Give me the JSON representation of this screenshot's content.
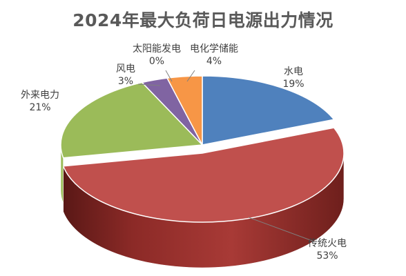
{
  "chart_data": {
    "type": "pie",
    "title": "2024年最大负荷日电源出力情况",
    "slices": [
      {
        "name": "水电",
        "value": 19,
        "label": "19%",
        "color": "#4F81BD"
      },
      {
        "name": "传统火电",
        "value": 53,
        "label": "53%",
        "color": "#C0504D"
      },
      {
        "name": "外来电力",
        "value": 21,
        "label": "21%",
        "color": "#9BBB59"
      },
      {
        "name": "风电",
        "value": 3,
        "label": "3%",
        "color": "#8064A2"
      },
      {
        "name": "太阳能发电",
        "value": 0,
        "label": "0%",
        "color": "#4BACC6"
      },
      {
        "name": "电化学储能",
        "value": 4,
        "label": "4%",
        "color": "#F79646"
      }
    ],
    "style": "3d-exploded",
    "legend": "none"
  }
}
